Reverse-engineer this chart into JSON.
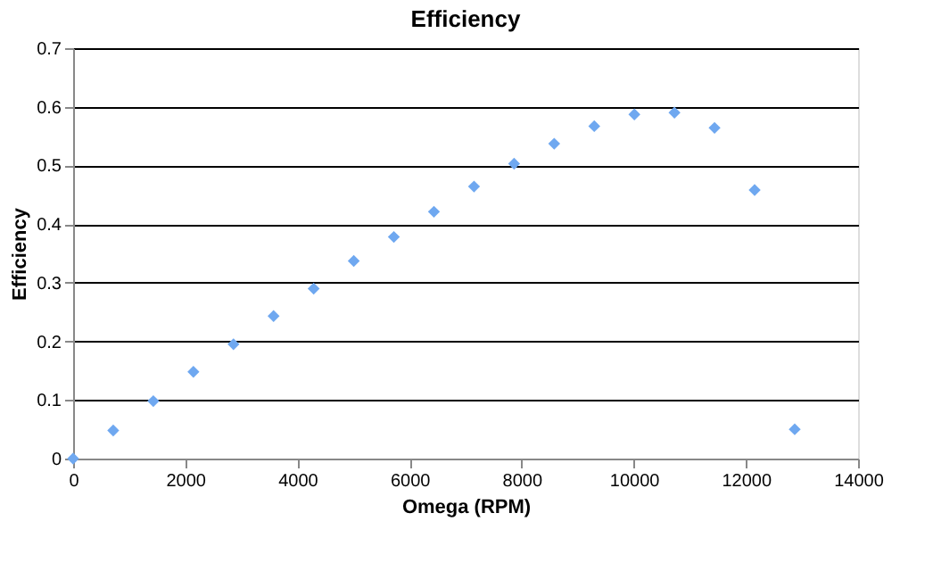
{
  "chart_data": {
    "type": "scatter",
    "title": "Efficiency",
    "xlabel": "Omega (RPM)",
    "ylabel": "Efficiency",
    "x": [
      0,
      715,
      1430,
      2145,
      2860,
      3575,
      4290,
      5005,
      5720,
      6435,
      7150,
      7865,
      8580,
      9295,
      10010,
      10725,
      11440,
      12155,
      12870
    ],
    "series": [
      {
        "color": "#6fa8f0",
        "values": [
          0,
          0.048,
          0.098,
          0.148,
          0.195,
          0.243,
          0.29,
          0.337,
          0.378,
          0.421,
          0.464,
          0.503,
          0.537,
          0.567,
          0.587,
          0.59,
          0.564,
          0.458,
          0.05
        ]
      }
    ],
    "xlim": [
      0,
      14000
    ],
    "xticks": [
      0,
      2000,
      4000,
      6000,
      8000,
      10000,
      12000,
      14000
    ],
    "ylim": [
      0,
      0.7
    ],
    "yticks": [
      0,
      0.1,
      0.2,
      0.3,
      0.4,
      0.5,
      0.6,
      0.7
    ],
    "grid": "y",
    "marker": "diamond",
    "legend": false
  }
}
